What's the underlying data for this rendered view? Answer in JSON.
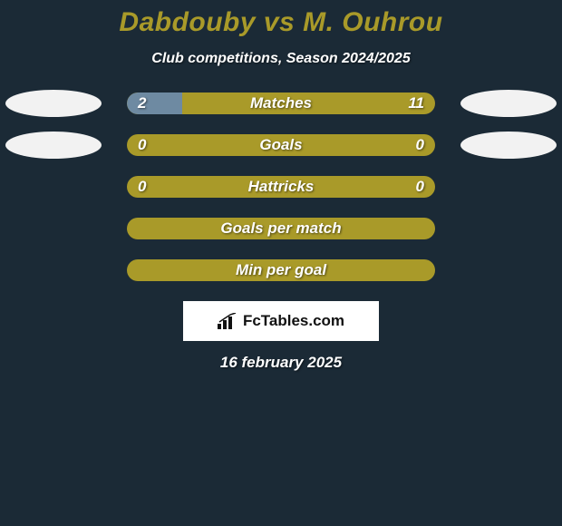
{
  "title": "Dabdouby vs M. Ouhrou",
  "title_color": "#a99a29",
  "subtitle": "Club competitions, Season 2024/2025",
  "subtitle_color": "#ffffff",
  "background_color": "#1b2a36",
  "oval_color": "#f2f2f2",
  "bar_base_color": "#a99a29",
  "bar_alt_color": "#6e8aa2",
  "date": "16 february 2025",
  "logo_text": "FcTables.com",
  "rows": [
    {
      "label": "Matches",
      "left": "2",
      "right": "11",
      "left_pct": 18,
      "right_pct": 82,
      "show_ovals": true
    },
    {
      "label": "Goals",
      "left": "0",
      "right": "0",
      "left_pct": 0,
      "right_pct": 0,
      "show_ovals": true
    },
    {
      "label": "Hattricks",
      "left": "0",
      "right": "0",
      "left_pct": 0,
      "right_pct": 0,
      "show_ovals": false
    },
    {
      "label": "Goals per match",
      "left": "",
      "right": "",
      "left_pct": 0,
      "right_pct": 0,
      "show_ovals": false
    },
    {
      "label": "Min per goal",
      "left": "",
      "right": "",
      "left_pct": 0,
      "right_pct": 0,
      "show_ovals": false
    }
  ]
}
